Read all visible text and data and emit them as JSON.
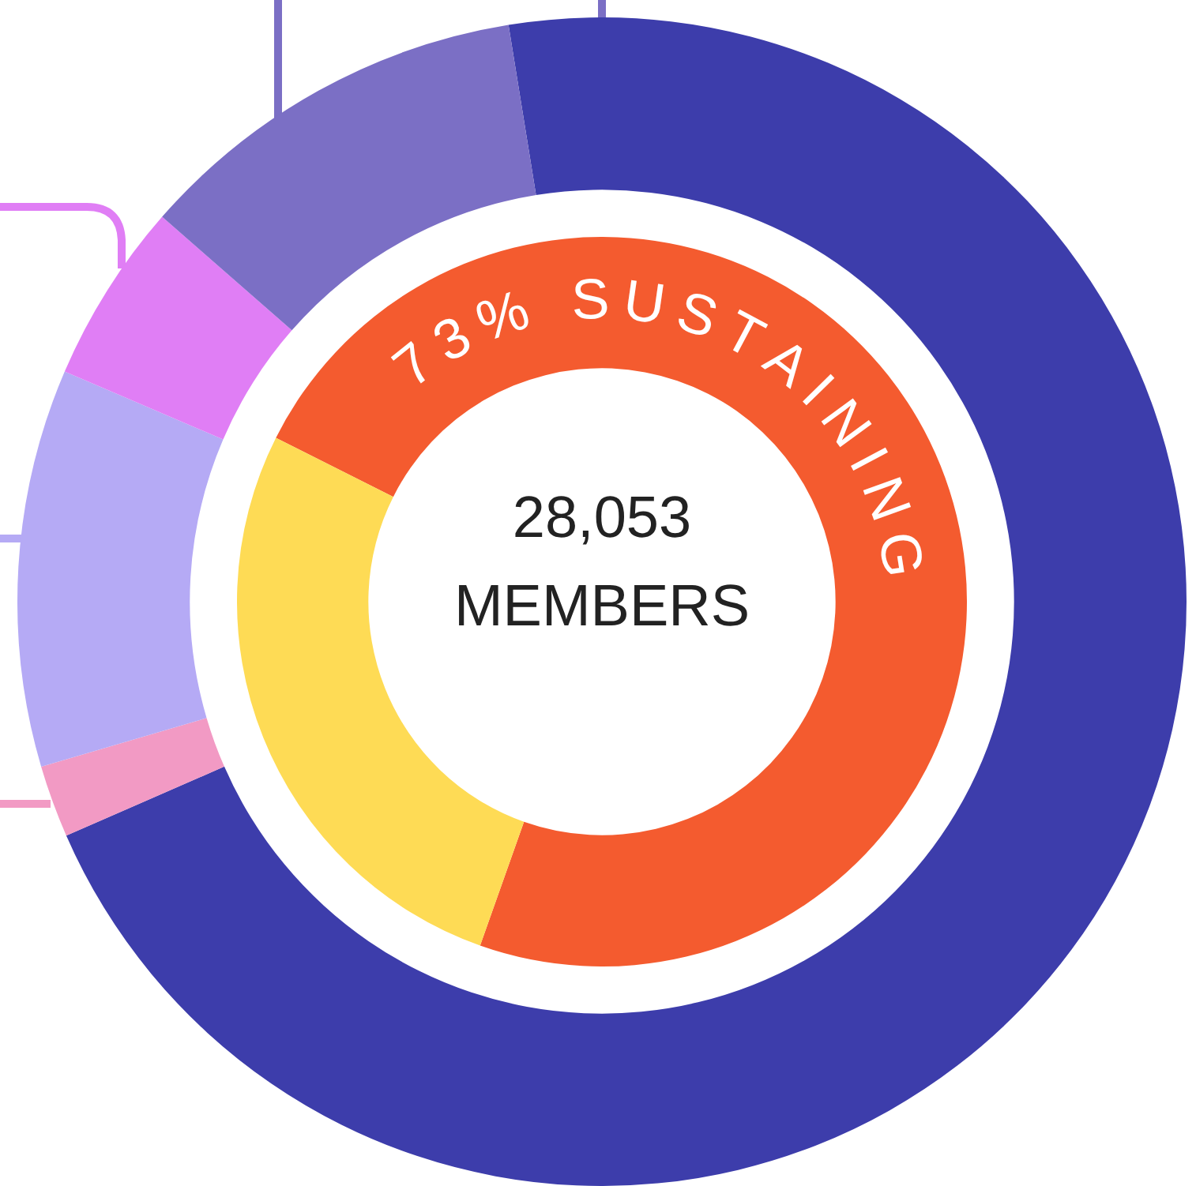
{
  "chart_data": {
    "type": "donut",
    "annotations": [
      "28,053",
      "MEMBERS"
    ],
    "series": [
      {
        "values": [
          71,
          2,
          11,
          5,
          11
        ],
        "colors": [
          "#3d3dab",
          "#f29ac4",
          "#b5aaf5",
          "#e07ef5",
          "#7b6fc5"
        ]
      },
      {
        "values": [
          73,
          27
        ],
        "colors": [
          "#f45b2f",
          "#fedb55"
        ],
        "value_labels": [
          "73% SUSTAINING",
          null
        ]
      }
    ]
  }
}
